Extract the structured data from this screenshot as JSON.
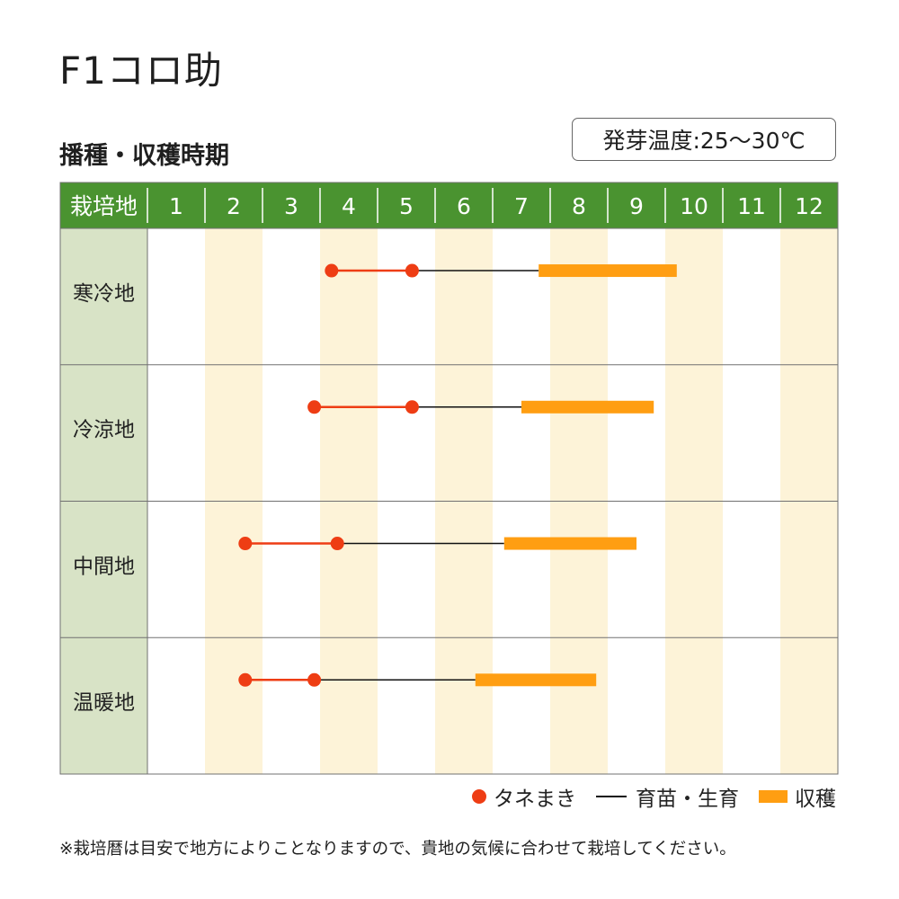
{
  "title": "F1コロ助",
  "subtitle": "播種・収穫時期",
  "germination_temp": "発芽温度:25〜30℃",
  "legend": {
    "sowing": "タネまき",
    "growing": "育苗・生育",
    "harvest": "収穫"
  },
  "note": "※栽培暦は目安で地方によりことなりますので、貴地の気候に合わせて栽培してください。",
  "colors": {
    "header_bg": "#4a9330",
    "header_text": "#ffffff",
    "region_bg": "#d8e3c6",
    "stripe": "#fdf3d8",
    "sowing": "#ee3d14",
    "growing": "#111111",
    "harvest": "#ff9e12",
    "grid": "#707070"
  },
  "chart_data": {
    "type": "table",
    "header_label": "栽培地",
    "months": [
      "1",
      "2",
      "3",
      "4",
      "5",
      "6",
      "7",
      "8",
      "9",
      "10",
      "11",
      "12"
    ],
    "x_unit": "month",
    "rows": [
      {
        "region": "寒冷地",
        "sowing": [
          4.2,
          5.6
        ],
        "growing": [
          5.6,
          7.8
        ],
        "harvest": [
          7.8,
          10.2
        ]
      },
      {
        "region": "冷涼地",
        "sowing": [
          3.9,
          5.6
        ],
        "growing": [
          5.6,
          7.5
        ],
        "harvest": [
          7.5,
          9.8
        ]
      },
      {
        "region": "中間地",
        "sowing": [
          2.7,
          4.3
        ],
        "growing": [
          4.3,
          7.2
        ],
        "harvest": [
          7.2,
          9.5
        ]
      },
      {
        "region": "温暖地",
        "sowing": [
          2.7,
          3.9
        ],
        "growing": [
          3.9,
          6.7
        ],
        "harvest": [
          6.7,
          8.8
        ]
      }
    ]
  }
}
